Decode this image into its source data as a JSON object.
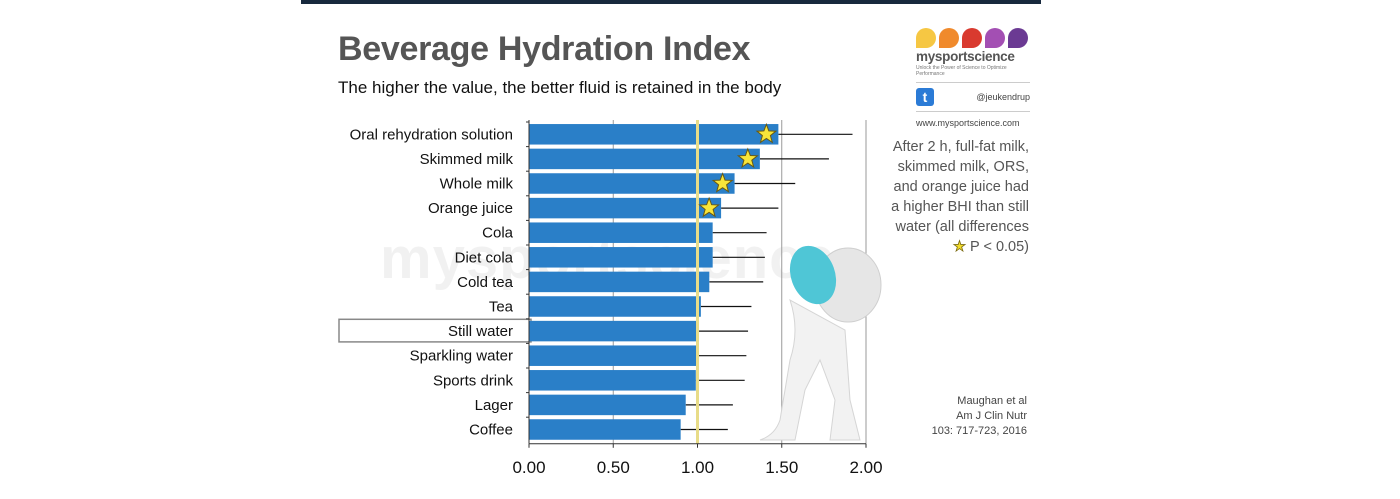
{
  "header": {
    "title": "Beverage Hydration Index",
    "subtitle": "The higher the value, the better fluid is retained in the body"
  },
  "logo": {
    "brand": "mysportscience",
    "tagline": "Unlock the Power of Science to Optimize Performance",
    "twitter_icon": "twitter-icon",
    "handle": "@jeukendrup",
    "url": "www.mysportscience.com",
    "drop_colors": [
      "#f6c743",
      "#f08a2c",
      "#d93a2f",
      "#a34fb3",
      "#6b3a93"
    ]
  },
  "note": {
    "text": "After 2 h, full-fat milk, skimmed milk, ORS, and orange juice had a higher BHI than still water (all differences",
    "star_label": "P < 0.05)"
  },
  "citation": {
    "line1": "Maughan et al",
    "line2": "Am J Clin Nutr",
    "line3": "103: 717-723, 2016"
  },
  "watermark": "mysportscience",
  "colors": {
    "bar": "#2a7fc8",
    "reference_line": "#e8dc88",
    "star_fill": "#f7e53a",
    "highlight_box": "#888888"
  },
  "chart_data": {
    "type": "bar",
    "orientation": "horizontal",
    "title": "Beverage Hydration Index",
    "subtitle": "The higher the value, the better fluid is retained in the body",
    "xlabel": "",
    "ylabel": "",
    "xlim": [
      0,
      2.0
    ],
    "xticks": [
      "0.00",
      "0.50",
      "1.00",
      "1.50",
      "2.00"
    ],
    "xtick_values": [
      0,
      0.5,
      1.0,
      1.5,
      2.0
    ],
    "reference_line": 1.0,
    "highlighted_category": "Still water",
    "categories": [
      "Oral rehydration solution",
      "Skimmed milk",
      "Whole milk",
      "Orange juice",
      "Cola",
      "Diet cola",
      "Cold tea",
      "Tea",
      "Still water",
      "Sparkling water",
      "Sports drink",
      "Lager",
      "Coffee"
    ],
    "values": [
      1.48,
      1.37,
      1.22,
      1.14,
      1.09,
      1.09,
      1.07,
      1.02,
      1.0,
      1.0,
      0.99,
      0.93,
      0.9
    ],
    "error_upper": [
      1.92,
      1.78,
      1.58,
      1.48,
      1.41,
      1.4,
      1.39,
      1.32,
      1.3,
      1.29,
      1.28,
      1.21,
      1.18
    ],
    "significant": [
      true,
      true,
      true,
      true,
      false,
      false,
      false,
      false,
      false,
      false,
      false,
      false,
      false
    ],
    "grid": "vertical",
    "legend": "none"
  }
}
